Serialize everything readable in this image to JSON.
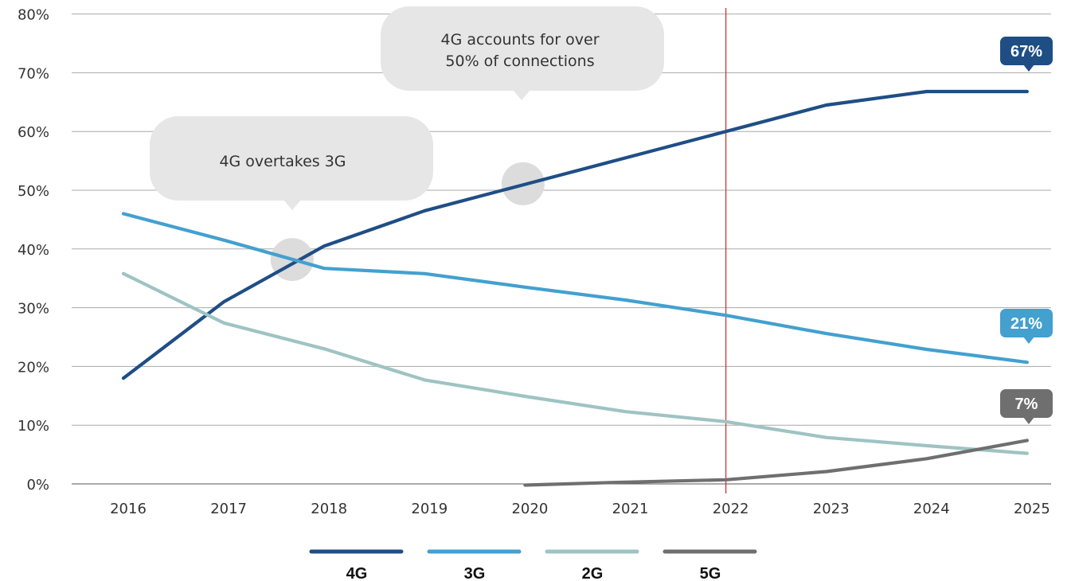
{
  "chart_data": {
    "type": "line",
    "x": [
      "2016",
      "2017",
      "2018",
      "2019",
      "2020",
      "2021",
      "2022",
      "2023",
      "2024",
      "2025"
    ],
    "ylim": [
      0,
      80
    ],
    "yticks": [
      "0%",
      "10%",
      "20%",
      "30%",
      "40%",
      "50%",
      "60%",
      "70%",
      "80%"
    ],
    "grid": "horizontal",
    "legend_position": "bottom",
    "reference_line": {
      "x": "2022",
      "color": "#cc2b2b"
    },
    "series": [
      {
        "name": "4G",
        "color": "#1f4e85",
        "values": [
          18,
          31,
          40.5,
          46.5,
          51,
          55.5,
          60,
          64.5,
          66.8,
          66.8
        ],
        "end_label": "67%"
      },
      {
        "name": "3G",
        "color": "#43a0cf",
        "values": [
          46,
          41.5,
          36.7,
          35.8,
          33.5,
          31.3,
          28.7,
          25.6,
          22.9,
          20.7
        ],
        "end_label": "21%"
      },
      {
        "name": "2G",
        "color": "#9fc3c3",
        "values": [
          35.8,
          27.4,
          23,
          17.7,
          14.9,
          12.3,
          10.6,
          7.9,
          6.5,
          5.2
        ],
        "end_label": ""
      },
      {
        "name": "5G",
        "color": "#6f6f6f",
        "values": [
          null,
          null,
          null,
          null,
          -0.2,
          0.3,
          0.7,
          2.1,
          4.3,
          7.4
        ],
        "end_label": "7%"
      }
    ],
    "annotations": [
      {
        "id": "overtake",
        "text_lines": [
          "4G overtakes 3G"
        ],
        "x": 2017.68,
        "y": 38.2
      },
      {
        "id": "over50",
        "text_lines": [
          "4G accounts for over",
          "50% of connections"
        ],
        "x": 2019.98,
        "y": 51.1
      }
    ]
  }
}
